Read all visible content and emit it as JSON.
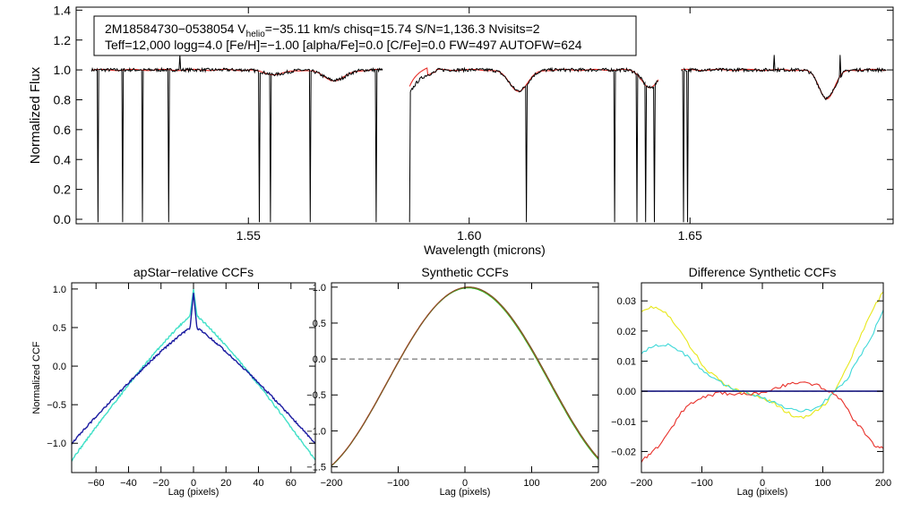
{
  "chart_data": [
    {
      "id": "spectrum",
      "type": "line",
      "xlabel": "Wavelength (microns)",
      "ylabel": "Normalized Flux",
      "xlim": [
        1.511,
        1.696
      ],
      "ylim": [
        -0.03,
        1.42
      ],
      "xticks": [
        1.55,
        1.6,
        1.65
      ],
      "xtick_labels": [
        "1.55",
        "1.60",
        "1.65"
      ],
      "yticks": [
        0.0,
        0.2,
        0.4,
        0.6,
        0.8,
        1.0,
        1.2,
        1.4
      ],
      "ytick_labels": [
        "0.0",
        "0.2",
        "0.4",
        "0.6",
        "0.8",
        "1.0",
        "1.2",
        "1.4"
      ],
      "info_box": {
        "line1_prefix": "2M18584730−0538054  V",
        "line1_sub": "helio",
        "line1_suffix": "=−35.11 km/s  chisq=15.74  S/N=1,136.3  Nvisits=2",
        "line2": "Teff=12,000 logg=4.0 [Fe/H]=−1.00 [alpha/Fe]=0.0 [C/Fe]=0.0 FW=497 AUTOFW=624"
      },
      "chips": [
        [
          1.5145,
          1.5805
        ],
        [
          1.5865,
          1.643
        ],
        [
          1.648,
          1.6945
        ]
      ],
      "absorption_lines": [
        {
          "center": 1.556,
          "depth": 0.03,
          "width": 0.0035
        },
        {
          "center": 1.5695,
          "depth": 0.07,
          "width": 0.0035
        },
        {
          "center": 1.6112,
          "depth": 0.14,
          "width": 0.003
        },
        {
          "center": 1.641,
          "depth": 0.12,
          "width": 0.0025
        },
        {
          "center": 1.681,
          "depth": 0.19,
          "width": 0.0025
        }
      ],
      "spikes": [
        1.516,
        1.5215,
        1.526,
        1.532,
        1.5525,
        1.555,
        1.564,
        1.579,
        1.5805,
        1.5865,
        1.613,
        1.633,
        1.638,
        1.64,
        1.642,
        1.6485,
        1.6495
      ],
      "upward_spikes": [
        1.5345,
        1.669,
        1.684
      ],
      "series": [
        {
          "name": "observed",
          "color": "#000000"
        },
        {
          "name": "model",
          "color": "#e8302a"
        }
      ]
    },
    {
      "id": "apstar_ccf",
      "type": "line",
      "title": "apStar−relative CCFs",
      "xlabel": "Lag (pixels)",
      "ylabel": "Normalized CCF",
      "xlim": [
        -75,
        75
      ],
      "ylim": [
        -1.38,
        1.08
      ],
      "xticks": [
        -60,
        -40,
        -20,
        0,
        20,
        40,
        60
      ],
      "xtick_labels": [
        "−60",
        "−40",
        "−20",
        "0",
        "20",
        "40",
        "60"
      ],
      "yticks": [
        -1.0,
        -0.5,
        0.0,
        0.5,
        1.0
      ],
      "ytick_labels": [
        "−1.0",
        "−0.5",
        "0.0",
        "0.5",
        "1.0"
      ],
      "series": [
        {
          "name": "visit 1",
          "color": "#40e0c8",
          "edge": -1.22,
          "peak_base": 0.68,
          "spike": 1.0
        },
        {
          "name": "visit 2",
          "color": "#1a1aa0",
          "edge": -1.0,
          "peak_base": 0.52,
          "spike": 0.95
        }
      ]
    },
    {
      "id": "synthetic_ccf",
      "type": "line",
      "title": "Synthetic CCFs",
      "xlabel": "Lag (pixels)",
      "xlim": [
        -200,
        200
      ],
      "ylim": [
        -1.58,
        1.06
      ],
      "xticks": [
        -200,
        -100,
        0,
        100,
        200
      ],
      "xtick_labels": [
        "−200",
        "−100",
        "0",
        "100",
        "200"
      ],
      "yticks": [
        -1.5,
        -1.0,
        -0.5,
        0.0,
        0.5,
        1.0
      ],
      "ytick_labels": [
        "−1.5",
        "−1.0",
        "−0.5",
        "0.0",
        "0.5",
        "1.0"
      ],
      "zero_line": 0.0,
      "series": [
        {
          "name": "green",
          "color": "#22c322"
        },
        {
          "name": "red",
          "color": "#e8302a"
        },
        {
          "name": "brown",
          "color": "#7a5a2a"
        }
      ]
    },
    {
      "id": "difference_ccf",
      "type": "line",
      "title": "Difference Synthetic CCFs",
      "xlabel": "Lag (pixels)",
      "xlim": [
        -200,
        200
      ],
      "ylim": [
        -0.027,
        0.036
      ],
      "xticks": [
        -200,
        -100,
        0,
        100,
        200
      ],
      "xtick_labels": [
        "−200",
        "−100",
        "0",
        "100",
        "200"
      ],
      "yticks": [
        -0.02,
        -0.01,
        0.0,
        0.01,
        0.02,
        0.03
      ],
      "ytick_labels": [
        "−0.02",
        "−0.01",
        "0.00",
        "0.01",
        "0.02",
        "0.03"
      ],
      "zero_line": 0.0,
      "series": [
        {
          "name": "yellow",
          "color": "#e8e81c",
          "points": [
            [
              -200,
              0.027
            ],
            [
              -180,
              0.028
            ],
            [
              -160,
              0.026
            ],
            [
              -140,
              0.021
            ],
            [
              -120,
              0.015
            ],
            [
              -100,
              0.009
            ],
            [
              -80,
              0.005
            ],
            [
              -60,
              0.002
            ],
            [
              -40,
              0.0
            ],
            [
              -20,
              -0.001
            ],
            [
              0,
              -0.002
            ],
            [
              20,
              -0.004
            ],
            [
              40,
              -0.007
            ],
            [
              60,
              -0.009
            ],
            [
              80,
              -0.008
            ],
            [
              100,
              -0.005
            ],
            [
              120,
              0.0
            ],
            [
              140,
              0.008
            ],
            [
              160,
              0.017
            ],
            [
              180,
              0.026
            ],
            [
              200,
              0.033
            ]
          ]
        },
        {
          "name": "cyan",
          "color": "#3ed8d8",
          "points": [
            [
              -200,
              0.013
            ],
            [
              -180,
              0.015
            ],
            [
              -160,
              0.0155
            ],
            [
              -140,
              0.014
            ],
            [
              -120,
              0.011
            ],
            [
              -100,
              0.007
            ],
            [
              -80,
              0.004
            ],
            [
              -60,
              0.002
            ],
            [
              -40,
              0.0005
            ],
            [
              -20,
              -0.001
            ],
            [
              0,
              -0.002
            ],
            [
              20,
              -0.004
            ],
            [
              40,
              -0.0055
            ],
            [
              60,
              -0.0065
            ],
            [
              80,
              -0.006
            ],
            [
              100,
              -0.004
            ],
            [
              120,
              0.0
            ],
            [
              140,
              0.004
            ],
            [
              160,
              0.011
            ],
            [
              180,
              0.018
            ],
            [
              200,
              0.027
            ]
          ]
        },
        {
          "name": "red",
          "color": "#e8302a",
          "points": [
            [
              -200,
              -0.023
            ],
            [
              -185,
              -0.021
            ],
            [
              -170,
              -0.018
            ],
            [
              -150,
              -0.012
            ],
            [
              -130,
              -0.006
            ],
            [
              -110,
              -0.003
            ],
            [
              -90,
              -0.0015
            ],
            [
              -70,
              -0.0005
            ],
            [
              -50,
              -0.001
            ],
            [
              -30,
              -0.0005
            ],
            [
              -10,
              -0.001
            ],
            [
              10,
              0.0005
            ],
            [
              30,
              0.0015
            ],
            [
              50,
              0.0025
            ],
            [
              70,
              0.003
            ],
            [
              90,
              0.002
            ],
            [
              110,
              0.0
            ],
            [
              130,
              -0.003
            ],
            [
              150,
              -0.009
            ],
            [
              170,
              -0.014
            ],
            [
              185,
              -0.018
            ],
            [
              200,
              -0.019
            ]
          ]
        },
        {
          "name": "navy",
          "color": "#1a1a80",
          "points": [
            [
              -200,
              0.0
            ],
            [
              200,
              0.0
            ]
          ]
        }
      ]
    }
  ]
}
